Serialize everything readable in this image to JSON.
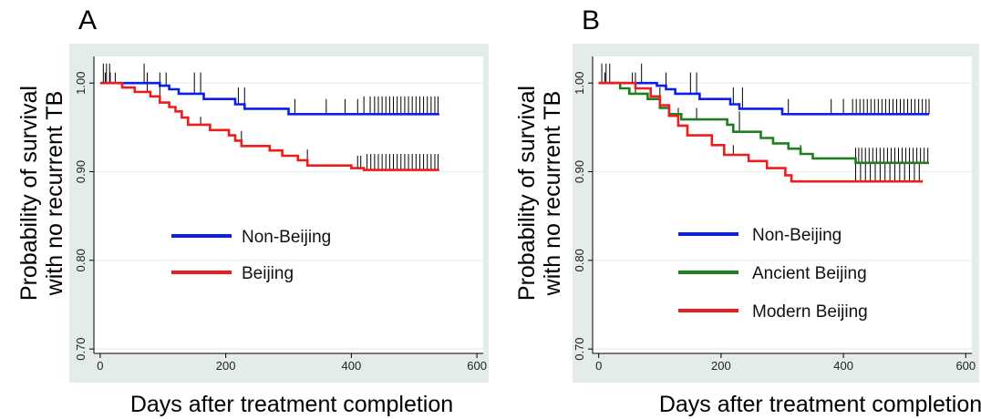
{
  "figure": {
    "colors": {
      "background_band": "#e3ebeb",
      "plot_area": "#ffffff",
      "gridline": "#e6eeee",
      "non_beijing": "#0a1ef0",
      "beijing": "#ee1c1c",
      "ancient_beijing": "#1e7f1e",
      "modern_beijing": "#ee1c1c",
      "censor_tick": "#000000"
    }
  },
  "chart_data": [
    {
      "panel": "A",
      "type": "line",
      "ylabel_line1": "Probability of survival",
      "ylabel_line2": "with no recurrent TB",
      "xlabel": "Days after treatment completion",
      "xlim": [
        -10,
        610
      ],
      "ylim": [
        0.695,
        1.03
      ],
      "xticks": [
        0,
        200,
        400,
        600
      ],
      "yticks": [
        0.7,
        0.8,
        0.9,
        1.0
      ],
      "ytick_labels": [
        "0.70",
        "0.80",
        "0.90",
        "1.00"
      ],
      "grid": true,
      "legend_position": "center-left",
      "series": [
        {
          "name": "Non-Beijing",
          "color": "#0a1ef0",
          "step_points": [
            [
              0,
              1.0
            ],
            [
              95,
              1.0
            ],
            [
              95,
              0.997
            ],
            [
              110,
              0.997
            ],
            [
              110,
              0.993
            ],
            [
              125,
              0.993
            ],
            [
              125,
              0.988
            ],
            [
              165,
              0.988
            ],
            [
              165,
              0.982
            ],
            [
              215,
              0.982
            ],
            [
              215,
              0.976
            ],
            [
              230,
              0.976
            ],
            [
              230,
              0.971
            ],
            [
              300,
              0.971
            ],
            [
              300,
              0.965
            ],
            [
              540,
              0.965
            ]
          ],
          "censor_times": [
            5,
            10,
            15,
            70,
            105,
            150,
            160,
            220,
            230,
            310,
            360,
            390,
            410,
            420,
            430,
            437,
            443,
            449,
            455,
            461,
            467,
            473,
            479,
            485,
            491,
            497,
            503,
            509,
            515,
            521,
            527,
            533,
            538
          ],
          "censor_heights": [
            1.022,
            1.022,
            1.022,
            1.022,
            1.012,
            1.012,
            1.012,
            0.995,
            0.995,
            0.982,
            0.982,
            0.982,
            0.982,
            0.985,
            0.985,
            0.985,
            0.985,
            0.985,
            0.985,
            0.985,
            0.985,
            0.985,
            0.985,
            0.985,
            0.985,
            0.985,
            0.985,
            0.985,
            0.985,
            0.985,
            0.985,
            0.985,
            0.985
          ]
        },
        {
          "name": "Beijing",
          "color": "#ee1c1c",
          "step_points": [
            [
              0,
              1.0
            ],
            [
              35,
              1.0
            ],
            [
              35,
              0.995
            ],
            [
              55,
              0.995
            ],
            [
              55,
              0.99
            ],
            [
              80,
              0.99
            ],
            [
              80,
              0.985
            ],
            [
              95,
              0.985
            ],
            [
              95,
              0.978
            ],
            [
              110,
              0.978
            ],
            [
              110,
              0.973
            ],
            [
              120,
              0.973
            ],
            [
              120,
              0.968
            ],
            [
              130,
              0.968
            ],
            [
              130,
              0.961
            ],
            [
              140,
              0.961
            ],
            [
              140,
              0.953
            ],
            [
              175,
              0.953
            ],
            [
              175,
              0.947
            ],
            [
              205,
              0.947
            ],
            [
              205,
              0.941
            ],
            [
              215,
              0.941
            ],
            [
              215,
              0.935
            ],
            [
              225,
              0.935
            ],
            [
              225,
              0.929
            ],
            [
              270,
              0.929
            ],
            [
              270,
              0.924
            ],
            [
              290,
              0.924
            ],
            [
              290,
              0.918
            ],
            [
              315,
              0.918
            ],
            [
              315,
              0.913
            ],
            [
              330,
              0.913
            ],
            [
              330,
              0.907
            ],
            [
              400,
              0.907
            ],
            [
              400,
              0.904
            ],
            [
              420,
              0.904
            ],
            [
              420,
              0.902
            ],
            [
              540,
              0.902
            ]
          ],
          "censor_times": [
            8,
            16,
            24,
            75,
            95,
            160,
            225,
            330,
            410,
            415,
            425,
            431,
            437,
            443,
            449,
            455,
            461,
            467,
            473,
            479,
            485,
            491,
            497,
            503,
            509,
            515,
            521,
            527,
            533,
            538
          ],
          "censor_heights": [
            1.012,
            1.012,
            1.012,
            1.012,
            1.012,
            0.962,
            0.946,
            0.925,
            0.918,
            0.918,
            0.92,
            0.92,
            0.92,
            0.92,
            0.92,
            0.92,
            0.92,
            0.92,
            0.92,
            0.92,
            0.92,
            0.92,
            0.92,
            0.92,
            0.92,
            0.92,
            0.92,
            0.92,
            0.92,
            0.92
          ]
        }
      ]
    },
    {
      "panel": "B",
      "type": "line",
      "ylabel_line1": "Probability of survival",
      "ylabel_line2": "with no recurrent TB",
      "xlabel": "Days after treatment completion",
      "xlim": [
        -10,
        610
      ],
      "ylim": [
        0.695,
        1.03
      ],
      "xticks": [
        0,
        200,
        400,
        600
      ],
      "yticks": [
        0.7,
        0.8,
        0.9,
        1.0
      ],
      "ytick_labels": [
        "0.70",
        "0.80",
        "0.90",
        "1.00"
      ],
      "grid": true,
      "legend_position": "bottom-left",
      "series": [
        {
          "name": "Non-Beijing",
          "color": "#0a1ef0",
          "step_points": [
            [
              0,
              1.0
            ],
            [
              95,
              1.0
            ],
            [
              95,
              0.997
            ],
            [
              110,
              0.997
            ],
            [
              110,
              0.993
            ],
            [
              125,
              0.993
            ],
            [
              125,
              0.988
            ],
            [
              165,
              0.988
            ],
            [
              165,
              0.982
            ],
            [
              215,
              0.982
            ],
            [
              215,
              0.976
            ],
            [
              230,
              0.976
            ],
            [
              230,
              0.971
            ],
            [
              300,
              0.971
            ],
            [
              300,
              0.965
            ],
            [
              540,
              0.965
            ]
          ],
          "censor_times": [
            5,
            12,
            18,
            70,
            110,
            150,
            160,
            220,
            235,
            310,
            380,
            400,
            415,
            421,
            427,
            433,
            439,
            445,
            451,
            457,
            463,
            469,
            475,
            481,
            487,
            493,
            499,
            505,
            511,
            517,
            523,
            529,
            535,
            540
          ],
          "censor_heights": [
            1.022,
            1.022,
            1.022,
            1.022,
            1.012,
            1.012,
            1.012,
            0.995,
            0.995,
            0.982,
            0.982,
            0.982,
            0.982,
            0.982,
            0.982,
            0.982,
            0.982,
            0.982,
            0.982,
            0.982,
            0.982,
            0.982,
            0.982,
            0.982,
            0.982,
            0.982,
            0.982,
            0.982,
            0.982,
            0.982,
            0.982,
            0.982,
            0.982,
            0.982
          ]
        },
        {
          "name": "Ancient Beijing",
          "color": "#1e7f1e",
          "step_points": [
            [
              0,
              1.0
            ],
            [
              35,
              1.0
            ],
            [
              35,
              0.994
            ],
            [
              50,
              0.994
            ],
            [
              50,
              0.988
            ],
            [
              80,
              0.988
            ],
            [
              80,
              0.982
            ],
            [
              100,
              0.982
            ],
            [
              100,
              0.972
            ],
            [
              115,
              0.972
            ],
            [
              115,
              0.965
            ],
            [
              135,
              0.965
            ],
            [
              135,
              0.959
            ],
            [
              210,
              0.959
            ],
            [
              210,
              0.953
            ],
            [
              220,
              0.953
            ],
            [
              220,
              0.945
            ],
            [
              265,
              0.945
            ],
            [
              265,
              0.938
            ],
            [
              285,
              0.938
            ],
            [
              285,
              0.932
            ],
            [
              310,
              0.932
            ],
            [
              310,
              0.926
            ],
            [
              330,
              0.926
            ],
            [
              330,
              0.92
            ],
            [
              350,
              0.92
            ],
            [
              350,
              0.915
            ],
            [
              420,
              0.915
            ],
            [
              420,
              0.91
            ],
            [
              540,
              0.91
            ]
          ],
          "censor_times": [
            10,
            60,
            100,
            160,
            230,
            330,
            420,
            425,
            430,
            436,
            442,
            448,
            454,
            460,
            466,
            472,
            478,
            484,
            490,
            496,
            502,
            508,
            514,
            520,
            526,
            532,
            538
          ],
          "censor_heights": [
            1.012,
            1.012,
            0.995,
            0.972,
            0.968,
            0.93,
            0.927,
            0.927,
            0.927,
            0.927,
            0.927,
            0.927,
            0.927,
            0.927,
            0.927,
            0.927,
            0.927,
            0.927,
            0.927,
            0.927,
            0.927,
            0.927,
            0.927,
            0.927,
            0.927,
            0.927,
            0.927
          ]
        },
        {
          "name": "Modern Beijing",
          "color": "#ee1c1c",
          "step_points": [
            [
              0,
              1.0
            ],
            [
              60,
              1.0
            ],
            [
              60,
              0.994
            ],
            [
              85,
              0.994
            ],
            [
              85,
              0.985
            ],
            [
              100,
              0.985
            ],
            [
              100,
              0.975
            ],
            [
              115,
              0.975
            ],
            [
              115,
              0.963
            ],
            [
              130,
              0.963
            ],
            [
              130,
              0.952
            ],
            [
              145,
              0.952
            ],
            [
              145,
              0.941
            ],
            [
              185,
              0.941
            ],
            [
              185,
              0.93
            ],
            [
              205,
              0.93
            ],
            [
              205,
              0.919
            ],
            [
              245,
              0.919
            ],
            [
              245,
              0.912
            ],
            [
              275,
              0.912
            ],
            [
              275,
              0.904
            ],
            [
              305,
              0.904
            ],
            [
              305,
              0.896
            ],
            [
              315,
              0.896
            ],
            [
              315,
              0.889
            ],
            [
              530,
              0.889
            ]
          ],
          "censor_times": [
            55,
            130,
            220,
            420,
            428,
            436,
            444,
            452,
            460,
            468,
            476,
            484,
            492,
            500,
            508,
            516,
            524
          ],
          "censor_heights": [
            1.012,
            0.972,
            0.93,
            0.91,
            0.91,
            0.91,
            0.91,
            0.91,
            0.91,
            0.91,
            0.91,
            0.91,
            0.91,
            0.91,
            0.91,
            0.91,
            0.91
          ]
        }
      ]
    }
  ]
}
